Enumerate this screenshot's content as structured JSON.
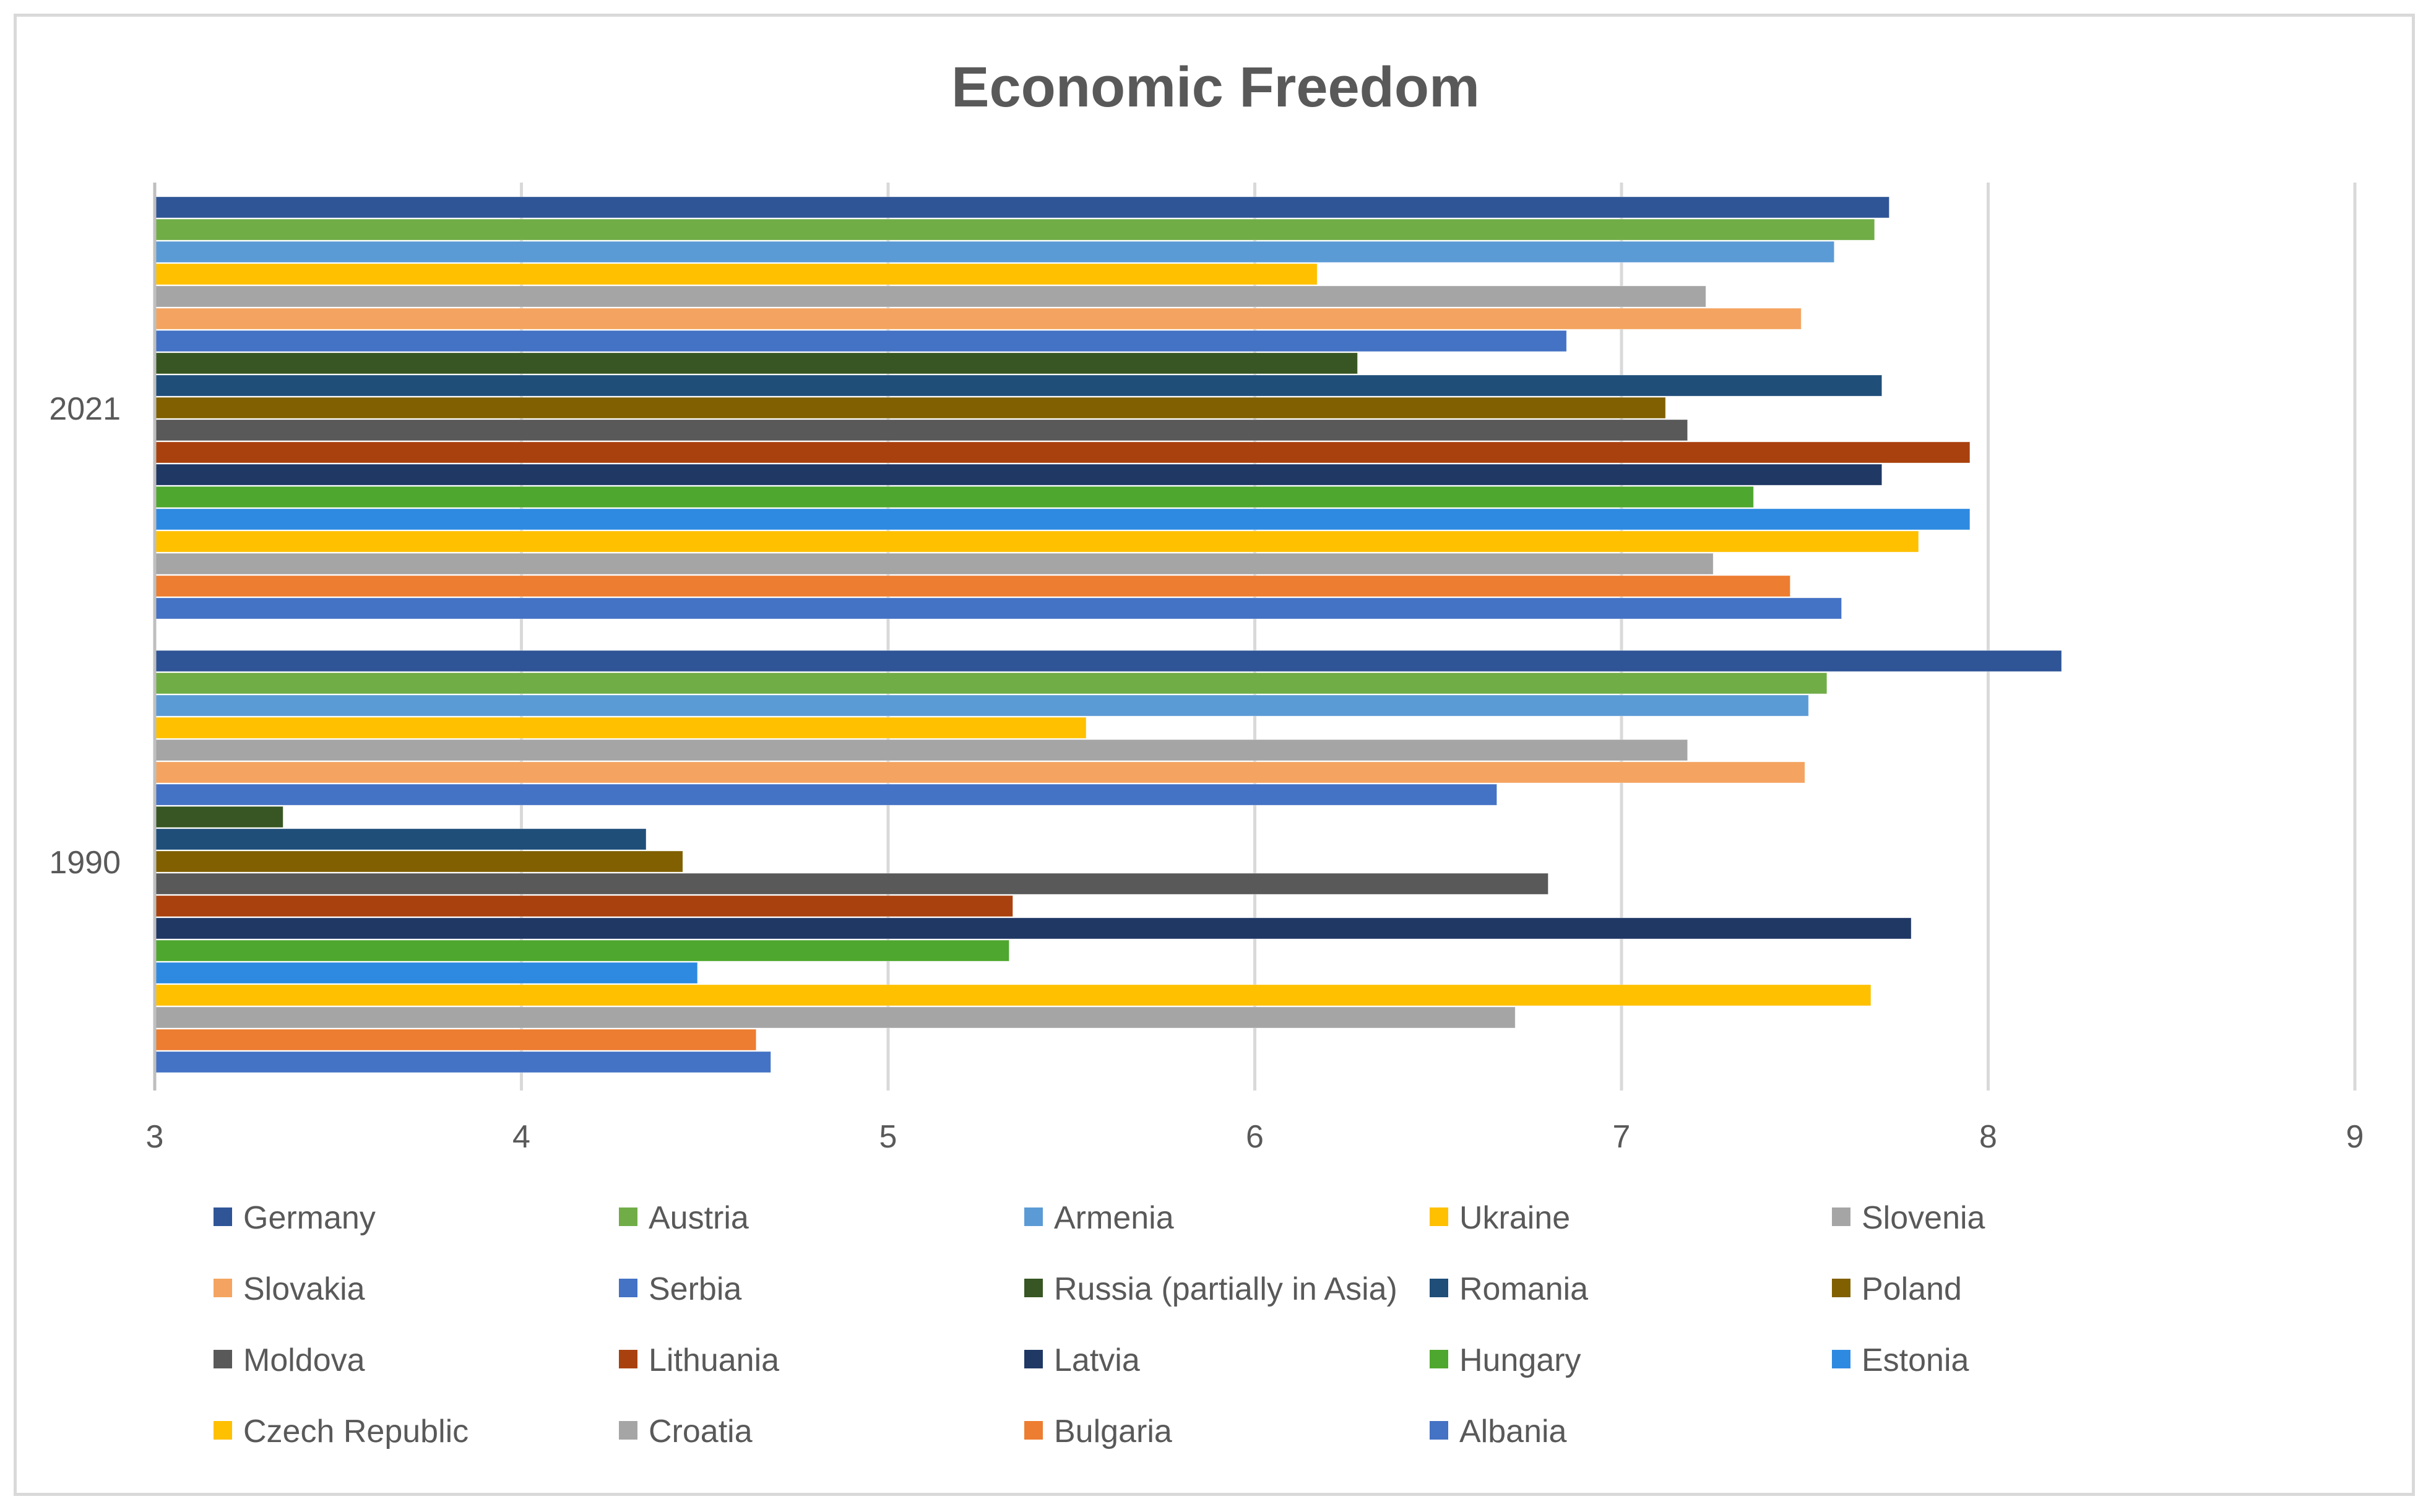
{
  "chart_data": {
    "type": "bar",
    "orientation": "horizontal",
    "title": "Economic Freedom",
    "xlabel": "",
    "ylabel": "",
    "xlim": [
      3,
      9
    ],
    "x_ticks": [
      "3",
      "4",
      "5",
      "6",
      "7",
      "8",
      "9"
    ],
    "grid": "vertical",
    "legend_position": "bottom",
    "categories": [
      "2021",
      "1990"
    ],
    "series": [
      {
        "name": "Germany",
        "color": "#2f5597",
        "values": [
          7.73,
          8.2
        ]
      },
      {
        "name": "Austria",
        "color": "#70ad47",
        "values": [
          7.69,
          7.56
        ]
      },
      {
        "name": "Armenia",
        "color": "#5b9bd5",
        "values": [
          7.58,
          7.51
        ]
      },
      {
        "name": "Ukraine",
        "color": "#ffc000",
        "values": [
          6.17,
          5.54
        ]
      },
      {
        "name": "Slovenia",
        "color": "#a5a5a5",
        "values": [
          7.23,
          7.18
        ]
      },
      {
        "name": "Slovakia",
        "color": "#f4a460",
        "values": [
          7.49,
          7.5
        ]
      },
      {
        "name": "Serbia",
        "color": "#4472c4",
        "values": [
          6.85,
          6.66
        ]
      },
      {
        "name": "Russia (partially in Asia)",
        "color": "#375623",
        "values": [
          6.28,
          3.35
        ]
      },
      {
        "name": "Romania",
        "color": "#1f4e79",
        "values": [
          7.71,
          4.34
        ]
      },
      {
        "name": "Poland",
        "color": "#806000",
        "values": [
          7.12,
          4.44
        ]
      },
      {
        "name": "Moldova",
        "color": "#595959",
        "values": [
          7.18,
          6.8
        ]
      },
      {
        "name": "Lithuania",
        "color": "#a9410e",
        "values": [
          7.95,
          5.34
        ]
      },
      {
        "name": "Latvia",
        "color": "#1f3864",
        "values": [
          7.71,
          7.79
        ]
      },
      {
        "name": "Hungary",
        "color": "#4ea72e",
        "values": [
          7.36,
          5.33
        ]
      },
      {
        "name": "Estonia",
        "color": "#2e8ae0",
        "values": [
          7.95,
          4.48
        ]
      },
      {
        "name": "Czech Republic",
        "color": "#ffc000",
        "values": [
          7.81,
          7.68
        ]
      },
      {
        "name": "Croatia",
        "color": "#a5a5a5",
        "values": [
          7.25,
          6.71
        ]
      },
      {
        "name": "Bulgaria",
        "color": "#ed7d31",
        "values": [
          7.46,
          4.64
        ]
      },
      {
        "name": "Albania",
        "color": "#4472c4",
        "values": [
          7.6,
          4.68
        ]
      }
    ]
  }
}
